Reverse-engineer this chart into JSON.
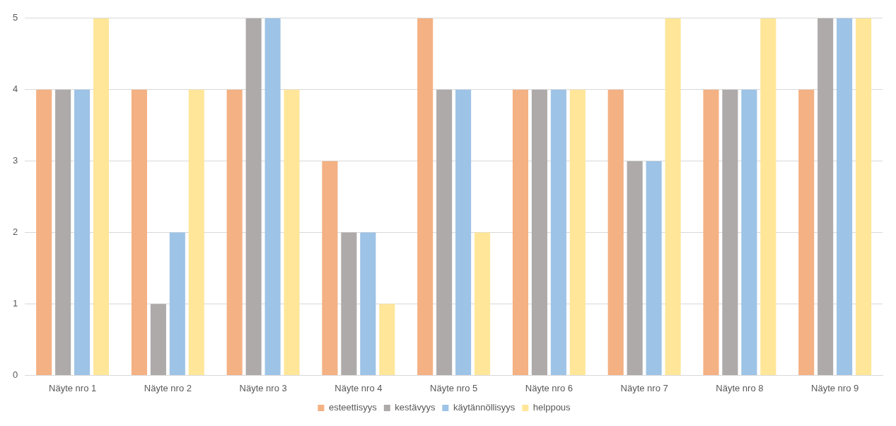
{
  "chart_data": {
    "type": "bar",
    "categories": [
      "Näyte nro 1",
      "Näyte nro 2",
      "Näyte nro 3",
      "Näyte nro 4",
      "Näyte nro 5",
      "Näyte nro 6",
      "Näyte nro 7",
      "Näyte nro 8",
      "Näyte nro 9"
    ],
    "series": [
      {
        "name": "esteettisyys",
        "color": "#f4b183",
        "values": [
          4,
          4,
          4,
          3,
          5,
          4,
          4,
          4,
          4
        ]
      },
      {
        "name": "kestävyys",
        "color": "#aeaaaa",
        "values": [
          4,
          1,
          5,
          2,
          4,
          4,
          3,
          4,
          5
        ]
      },
      {
        "name": "käytännöllisyys",
        "color": "#9dc3e6",
        "values": [
          4,
          2,
          5,
          2,
          4,
          4,
          3,
          4,
          5
        ]
      },
      {
        "name": "helppous",
        "color": "#ffe699",
        "values": [
          5,
          4,
          4,
          1,
          2,
          4,
          5,
          5,
          5
        ]
      }
    ],
    "ylim": [
      0,
      5
    ],
    "yticks": [
      0,
      1,
      2,
      3,
      4,
      5
    ],
    "grid": "y",
    "legend": "bottom"
  }
}
